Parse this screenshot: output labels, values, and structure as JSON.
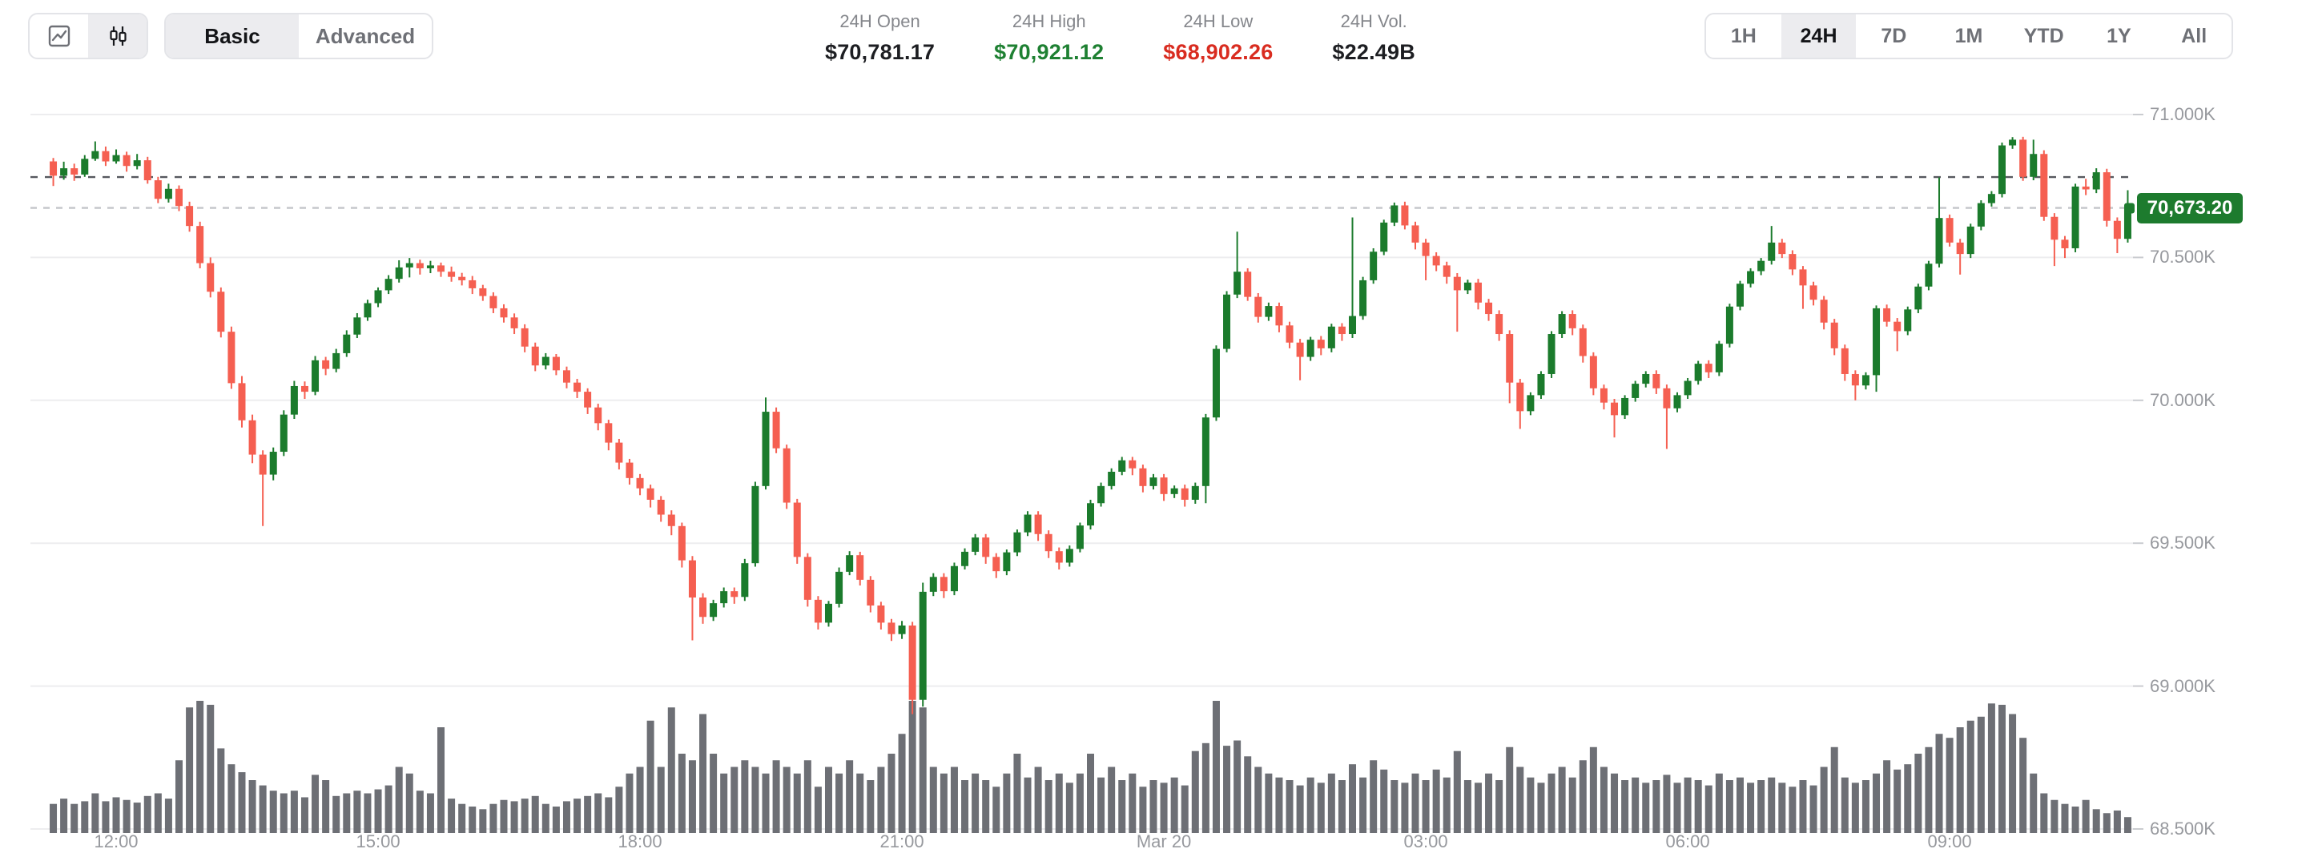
{
  "header": {
    "chart_type": {
      "line_icon": "line-chart",
      "candle_icon": "candlestick-chart",
      "active": "candlestick"
    },
    "mode_tabs": {
      "basic": "Basic",
      "advanced": "Advanced",
      "active": "Basic"
    },
    "stats": [
      {
        "label": "24H Open",
        "value": "$70,781.17",
        "tone": "dark"
      },
      {
        "label": "24H High",
        "value": "$70,921.12",
        "tone": "green"
      },
      {
        "label": "24H Low",
        "value": "$68,902.26",
        "tone": "red"
      },
      {
        "label": "24H Vol.",
        "value": "$22.49B",
        "tone": "dark"
      }
    ],
    "ranges": [
      "1H",
      "24H",
      "7D",
      "1M",
      "YTD",
      "1Y",
      "All"
    ],
    "active_range": "24H"
  },
  "chart": {
    "last_price_label": "70,673.20",
    "colors": {
      "up": "#1b7b2c",
      "down": "#f55f51",
      "volume": "#6d6f75",
      "grid": "#ededef",
      "open_dash": "#56585e",
      "last_dash": "#c3c5c9",
      "tag_bg": "#1d7b2e"
    }
  },
  "chart_data": {
    "type": "candlestick",
    "title": "BTC 24H price chart",
    "price_axis": {
      "min": 68500,
      "max": 71000,
      "step": 500,
      "labels": [
        {
          "text": "71.000K",
          "price": 71000
        },
        {
          "text": "70.500K",
          "price": 70500
        },
        {
          "text": "70.000K",
          "price": 70000
        },
        {
          "text": "69.500K",
          "price": 69500
        },
        {
          "text": "69.000K",
          "price": 69000
        },
        {
          "text": "68.500K",
          "price": 68500
        }
      ]
    },
    "x_ticks": [
      {
        "text": "12:00",
        "at": 6
      },
      {
        "text": "15:00",
        "at": 31
      },
      {
        "text": "18:00",
        "at": 56
      },
      {
        "text": "21:00",
        "at": 81
      },
      {
        "text": "Mar 20",
        "at": 106
      },
      {
        "text": "03:00",
        "at": 131
      },
      {
        "text": "06:00",
        "at": 156
      },
      {
        "text": "09:00",
        "at": 181
      }
    ],
    "open_price_line": 70781.17,
    "last_price_line": 70673.2,
    "candles": [
      [
        70836,
        70848,
        70750,
        70786,
        22
      ],
      [
        70786,
        70835,
        70772,
        70812,
        26
      ],
      [
        70812,
        70828,
        70768,
        70790,
        22
      ],
      [
        70790,
        70858,
        70782,
        70845,
        24
      ],
      [
        70845,
        70906,
        70838,
        70872,
        30
      ],
      [
        70872,
        70888,
        70820,
        70836,
        24
      ],
      [
        70836,
        70878,
        70828,
        70858,
        27
      ],
      [
        70858,
        70870,
        70800,
        70820,
        25
      ],
      [
        70820,
        70862,
        70808,
        70840,
        23
      ],
      [
        70840,
        70852,
        70758,
        70770,
        28
      ],
      [
        70770,
        70782,
        70690,
        70705,
        30
      ],
      [
        70705,
        70758,
        70692,
        70740,
        26
      ],
      [
        70740,
        70752,
        70662,
        70680,
        55
      ],
      [
        70680,
        70695,
        70590,
        70610,
        95
      ],
      [
        70610,
        70625,
        70462,
        70480,
        100
      ],
      [
        70480,
        70500,
        70360,
        70380,
        97
      ],
      [
        70380,
        70395,
        70220,
        70240,
        64
      ],
      [
        70240,
        70258,
        70040,
        70060,
        52
      ],
      [
        70060,
        70085,
        69905,
        69930,
        46
      ],
      [
        69930,
        69950,
        69780,
        69810,
        40
      ],
      [
        69810,
        69825,
        69560,
        69740,
        36
      ],
      [
        69740,
        69835,
        69720,
        69820,
        32
      ],
      [
        69820,
        69965,
        69805,
        69950,
        30
      ],
      [
        69950,
        70068,
        69935,
        70050,
        32
      ],
      [
        70050,
        70066,
        70005,
        70030,
        27
      ],
      [
        70030,
        70155,
        70018,
        70140,
        44
      ],
      [
        70140,
        70152,
        70088,
        70110,
        40
      ],
      [
        70110,
        70180,
        70098,
        70165,
        28
      ],
      [
        70165,
        70245,
        70152,
        70230,
        30
      ],
      [
        70230,
        70305,
        70218,
        70290,
        32
      ],
      [
        70290,
        70352,
        70278,
        70340,
        30
      ],
      [
        70340,
        70395,
        70326,
        70385,
        33
      ],
      [
        70385,
        70438,
        70372,
        70425,
        36
      ],
      [
        70425,
        70490,
        70412,
        70465,
        50
      ],
      [
        70465,
        70498,
        70430,
        70480,
        45
      ],
      [
        70480,
        70492,
        70440,
        70462,
        32
      ],
      [
        70462,
        70488,
        70445,
        70472,
        30
      ],
      [
        70472,
        70482,
        70432,
        70450,
        80
      ],
      [
        70450,
        70468,
        70415,
        70432,
        26
      ],
      [
        70432,
        70446,
        70402,
        70420,
        22
      ],
      [
        70420,
        70435,
        70372,
        70392,
        20
      ],
      [
        70392,
        70404,
        70348,
        70365,
        18
      ],
      [
        70365,
        70378,
        70305,
        70322,
        22
      ],
      [
        70322,
        70336,
        70272,
        70290,
        25
      ],
      [
        70290,
        70304,
        70232,
        70252,
        24
      ],
      [
        70252,
        70266,
        70168,
        70188,
        26
      ],
      [
        70188,
        70202,
        70102,
        70122,
        28
      ],
      [
        70122,
        70165,
        70108,
        70152,
        22
      ],
      [
        70152,
        70162,
        70088,
        70105,
        20
      ],
      [
        70105,
        70118,
        70042,
        70062,
        24
      ],
      [
        70062,
        70075,
        70008,
        70030,
        26
      ],
      [
        70030,
        70042,
        69952,
        69975,
        28
      ],
      [
        69975,
        69988,
        69895,
        69920,
        30
      ],
      [
        69920,
        69932,
        69825,
        69852,
        27
      ],
      [
        69852,
        69865,
        69758,
        69782,
        35
      ],
      [
        69782,
        69795,
        69705,
        69728,
        45
      ],
      [
        69728,
        69742,
        69668,
        69692,
        50
      ],
      [
        69692,
        69705,
        69625,
        69652,
        85
      ],
      [
        69652,
        69665,
        69575,
        69600,
        50
      ],
      [
        69600,
        69615,
        69528,
        69560,
        95
      ],
      [
        69560,
        69572,
        69415,
        69440,
        60
      ],
      [
        69440,
        69455,
        69160,
        69310,
        55
      ],
      [
        69310,
        69325,
        69218,
        69242,
        90
      ],
      [
        69242,
        69302,
        69228,
        69290,
        60
      ],
      [
        69290,
        69345,
        69275,
        69332,
        45
      ],
      [
        69332,
        69345,
        69288,
        69312,
        50
      ],
      [
        69312,
        69445,
        69298,
        69430,
        55
      ],
      [
        69430,
        69715,
        69418,
        69700,
        50
      ],
      [
        69700,
        70010,
        69688,
        69960,
        45
      ],
      [
        69960,
        69975,
        69815,
        69832,
        55
      ],
      [
        69832,
        69845,
        69620,
        69642,
        50
      ],
      [
        69642,
        69655,
        69428,
        69452,
        45
      ],
      [
        69452,
        69465,
        69278,
        69302,
        55
      ],
      [
        69302,
        69315,
        69198,
        69222,
        35
      ],
      [
        69222,
        69298,
        69208,
        69288,
        50
      ],
      [
        69288,
        69415,
        69275,
        69400,
        45
      ],
      [
        69400,
        69472,
        69388,
        69458,
        55
      ],
      [
        69458,
        69470,
        69352,
        69372,
        45
      ],
      [
        69372,
        69385,
        69258,
        69282,
        40
      ],
      [
        69282,
        69295,
        69198,
        69222,
        50
      ],
      [
        69222,
        69235,
        69158,
        69182,
        60
      ],
      [
        69182,
        69228,
        69165,
        69212,
        75
      ],
      [
        69212,
        69225,
        68902,
        68952,
        100
      ],
      [
        68952,
        69362,
        68928,
        69330,
        95
      ],
      [
        69330,
        69395,
        69315,
        69382,
        50
      ],
      [
        69382,
        69395,
        69308,
        69332,
        45
      ],
      [
        69332,
        69432,
        69318,
        69420,
        50
      ],
      [
        69420,
        69482,
        69408,
        69470,
        40
      ],
      [
        69470,
        69532,
        69458,
        69520,
        45
      ],
      [
        69520,
        69532,
        69428,
        69452,
        40
      ],
      [
        69452,
        69465,
        69378,
        69402,
        35
      ],
      [
        69402,
        69478,
        69388,
        69468,
        45
      ],
      [
        69468,
        69548,
        69455,
        69538,
        60
      ],
      [
        69538,
        69612,
        69525,
        69600,
        42
      ],
      [
        69600,
        69612,
        69508,
        69532,
        50
      ],
      [
        69532,
        69545,
        69448,
        69472,
        40
      ],
      [
        69472,
        69485,
        69408,
        69432,
        45
      ],
      [
        69432,
        69492,
        69418,
        69480,
        38
      ],
      [
        69480,
        69572,
        69468,
        69562,
        45
      ],
      [
        69562,
        69652,
        69548,
        69640,
        60
      ],
      [
        69640,
        69712,
        69628,
        69700,
        42
      ],
      [
        69700,
        69762,
        69688,
        69750,
        50
      ],
      [
        69750,
        69802,
        69738,
        69790,
        40
      ],
      [
        69790,
        69802,
        69738,
        69762,
        45
      ],
      [
        69762,
        69775,
        69678,
        69700,
        35
      ],
      [
        69700,
        69742,
        69688,
        69730,
        40
      ],
      [
        69730,
        69742,
        69648,
        69672,
        38
      ],
      [
        69672,
        69702,
        69658,
        69692,
        42
      ],
      [
        69692,
        69705,
        69628,
        69652,
        36
      ],
      [
        69652,
        69712,
        69638,
        69700,
        62
      ],
      [
        69700,
        69952,
        69640,
        69940,
        68
      ],
      [
        69940,
        70192,
        69928,
        70180,
        100
      ],
      [
        70180,
        70382,
        70168,
        70370,
        66
      ],
      [
        70370,
        70590,
        70358,
        70450,
        70
      ],
      [
        70450,
        70462,
        70348,
        70362,
        58
      ],
      [
        70362,
        70375,
        70272,
        70292,
        50
      ],
      [
        70292,
        70342,
        70278,
        70330,
        45
      ],
      [
        70330,
        70342,
        70238,
        70262,
        42
      ],
      [
        70262,
        70275,
        70182,
        70202,
        40
      ],
      [
        70202,
        70215,
        70070,
        70152,
        36
      ],
      [
        70152,
        70222,
        70138,
        70212,
        42
      ],
      [
        70212,
        70225,
        70158,
        70182,
        38
      ],
      [
        70182,
        70268,
        70168,
        70258,
        45
      ],
      [
        70258,
        70270,
        70208,
        70232,
        40
      ],
      [
        70232,
        70640,
        70218,
        70295,
        52
      ],
      [
        70295,
        70432,
        70282,
        70420,
        42
      ],
      [
        70420,
        70532,
        70408,
        70520,
        55
      ],
      [
        70520,
        70632,
        70508,
        70622,
        48
      ],
      [
        70622,
        70692,
        70610,
        70682,
        40
      ],
      [
        70682,
        70695,
        70598,
        70612,
        38
      ],
      [
        70612,
        70625,
        70528,
        70552,
        45
      ],
      [
        70552,
        70565,
        70420,
        70505,
        40
      ],
      [
        70505,
        70518,
        70452,
        70472,
        48
      ],
      [
        70472,
        70485,
        70408,
        70432,
        42
      ],
      [
        70432,
        70445,
        70240,
        70385,
        62
      ],
      [
        70385,
        70422,
        70372,
        70412,
        40
      ],
      [
        70412,
        70425,
        70318,
        70342,
        38
      ],
      [
        70342,
        70355,
        70278,
        70302,
        45
      ],
      [
        70302,
        70315,
        70208,
        70232,
        40
      ],
      [
        70232,
        70245,
        69990,
        70062,
        65
      ],
      [
        70062,
        70075,
        69900,
        69962,
        50
      ],
      [
        69962,
        70028,
        69948,
        70018,
        42
      ],
      [
        70018,
        70102,
        70005,
        70092,
        38
      ],
      [
        70092,
        70242,
        70078,
        70232,
        45
      ],
      [
        70232,
        70312,
        70218,
        70302,
        50
      ],
      [
        70302,
        70315,
        70228,
        70252,
        42
      ],
      [
        70252,
        70265,
        70132,
        70155,
        55
      ],
      [
        70155,
        70168,
        70018,
        70042,
        65
      ],
      [
        70042,
        70055,
        69968,
        69992,
        50
      ],
      [
        69992,
        70005,
        69870,
        69948,
        45
      ],
      [
        69948,
        70018,
        69935,
        70008,
        40
      ],
      [
        70008,
        70068,
        69995,
        70058,
        42
      ],
      [
        70058,
        70102,
        70045,
        70092,
        38
      ],
      [
        70092,
        70105,
        70022,
        70042,
        40
      ],
      [
        70042,
        70055,
        69830,
        69972,
        44
      ],
      [
        69972,
        70028,
        69958,
        70018,
        38
      ],
      [
        70018,
        70078,
        70005,
        70068,
        42
      ],
      [
        70068,
        70138,
        70055,
        70128,
        40
      ],
      [
        70128,
        70140,
        70078,
        70098,
        36
      ],
      [
        70098,
        70208,
        70085,
        70198,
        45
      ],
      [
        70198,
        70338,
        70185,
        70328,
        40
      ],
      [
        70328,
        70418,
        70315,
        70408,
        42
      ],
      [
        70408,
        70462,
        70395,
        70452,
        38
      ],
      [
        70452,
        70498,
        70438,
        70488,
        40
      ],
      [
        70488,
        70610,
        70475,
        70552,
        42
      ],
      [
        70552,
        70565,
        70498,
        70512,
        38
      ],
      [
        70512,
        70525,
        70438,
        70458,
        35
      ],
      [
        70458,
        70470,
        70320,
        70402,
        40
      ],
      [
        70402,
        70415,
        70332,
        70352,
        36
      ],
      [
        70352,
        70365,
        70248,
        70272,
        50
      ],
      [
        70272,
        70285,
        70158,
        70182,
        65
      ],
      [
        70182,
        70195,
        70068,
        70092,
        42
      ],
      [
        70092,
        70105,
        70000,
        70052,
        38
      ],
      [
        70052,
        70098,
        70038,
        70088,
        40
      ],
      [
        70088,
        70332,
        70030,
        70322,
        45
      ],
      [
        70322,
        70335,
        70258,
        70275,
        55
      ],
      [
        70275,
        70288,
        70172,
        70242,
        48
      ],
      [
        70242,
        70328,
        70228,
        70318,
        52
      ],
      [
        70318,
        70408,
        70305,
        70398,
        60
      ],
      [
        70398,
        70488,
        70385,
        70478,
        65
      ],
      [
        70478,
        70780,
        70465,
        70638,
        75
      ],
      [
        70638,
        70650,
        70538,
        70552,
        72
      ],
      [
        70552,
        70565,
        70440,
        70512,
        80
      ],
      [
        70512,
        70618,
        70498,
        70608,
        85
      ],
      [
        70608,
        70700,
        70595,
        70690,
        88
      ],
      [
        70690,
        70732,
        70678,
        70722,
        98
      ],
      [
        70722,
        70902,
        70710,
        70892,
        97
      ],
      [
        70892,
        70921,
        70880,
        70912,
        90
      ],
      [
        70912,
        70922,
        70768,
        70782,
        72
      ],
      [
        70782,
        70912,
        70770,
        70862,
        45
      ],
      [
        70862,
        70875,
        70628,
        70642,
        30
      ],
      [
        70642,
        70655,
        70470,
        70562,
        25
      ],
      [
        70562,
        70575,
        70498,
        70532,
        22
      ],
      [
        70532,
        70758,
        70518,
        70748,
        20
      ],
      [
        70748,
        70775,
        70718,
        70738,
        25
      ],
      [
        70738,
        70812,
        70725,
        70798,
        18
      ],
      [
        70798,
        70810,
        70608,
        70628,
        15
      ],
      [
        70628,
        70640,
        70515,
        70565,
        17
      ],
      [
        70565,
        70735,
        70552,
        70673,
        12
      ]
    ]
  }
}
